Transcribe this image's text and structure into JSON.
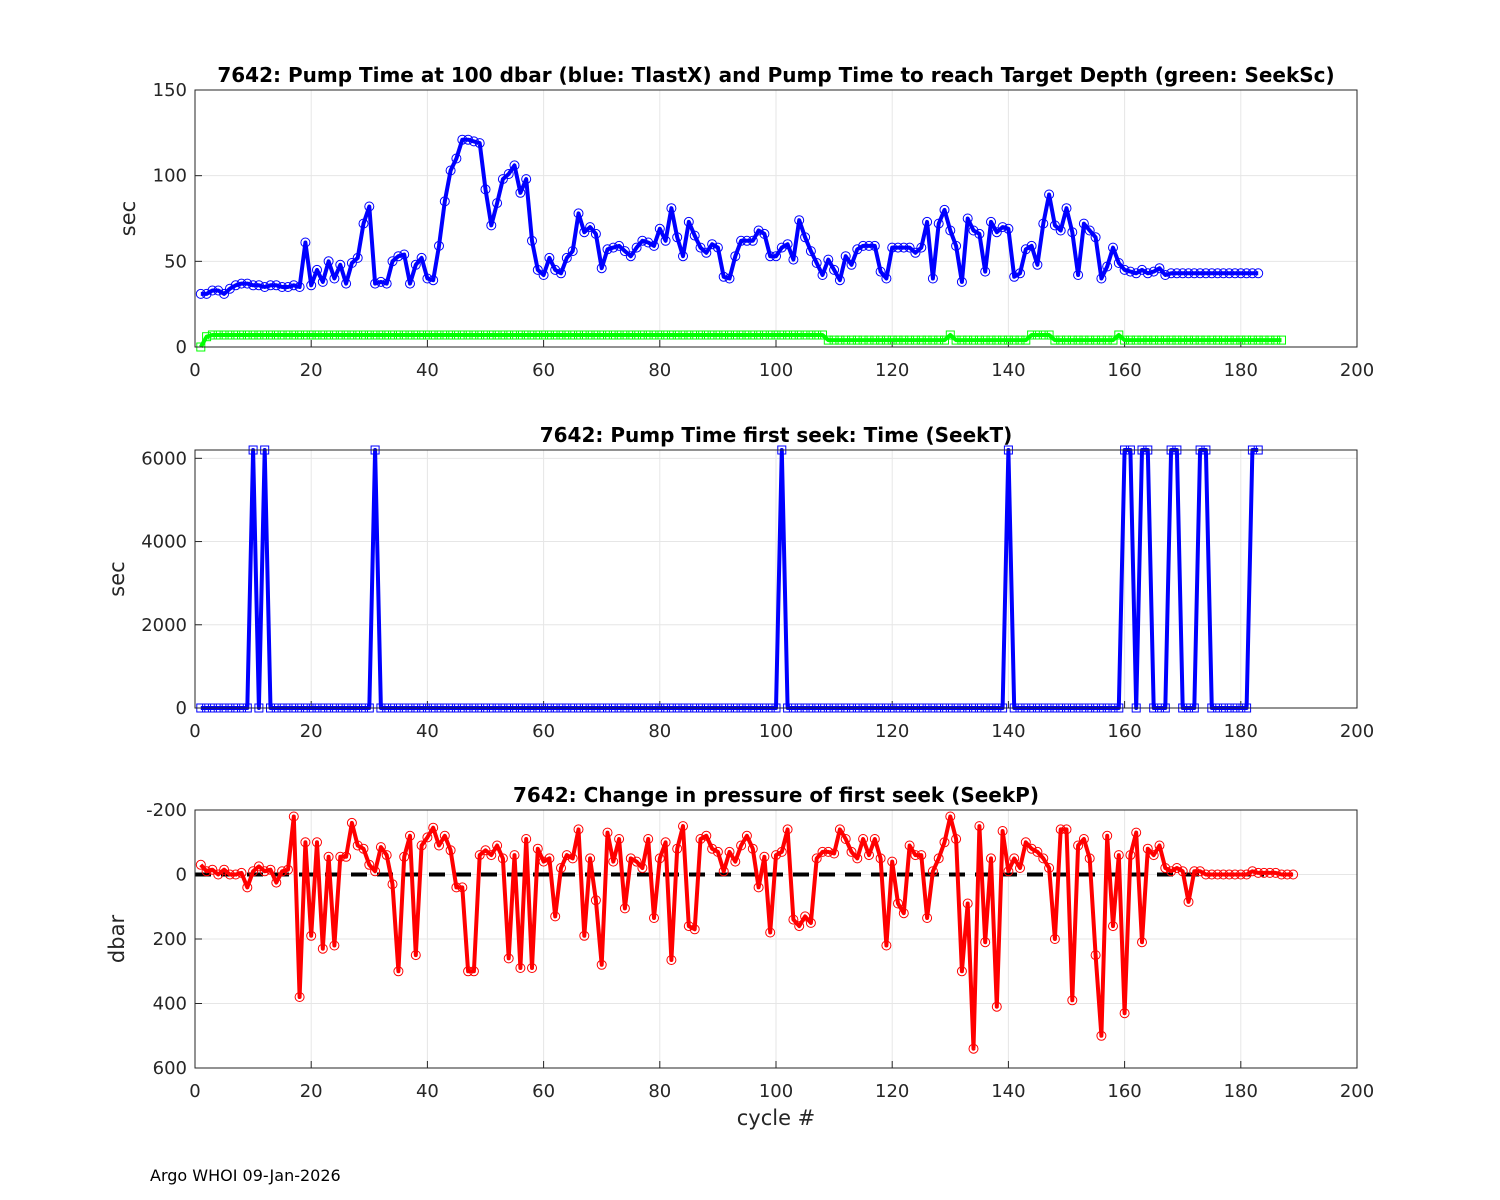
{
  "footer": "Argo WHOI 09-Jan-2026",
  "colors": {
    "blue": "#0000ff",
    "green": "#00ff00",
    "red": "#ff0000",
    "black": "#000000",
    "grid": "#e6e6e6",
    "axis": "#262626"
  },
  "chart_data": [
    {
      "type": "line",
      "title": "7642:  Pump Time at 100 dbar (blue: TlastX) and Pump Time to reach Target Depth (green: SeekSc)",
      "xlabel": "",
      "ylabel": "sec",
      "xlim": [
        0,
        200
      ],
      "ylim": [
        0,
        150
      ],
      "y_reversed": false,
      "grid": true,
      "xticks": [
        0,
        20,
        40,
        60,
        80,
        100,
        120,
        140,
        160,
        180,
        200
      ],
      "yticks": [
        0,
        50,
        100,
        150
      ],
      "series": [
        {
          "color": "blue",
          "marker": "circle",
          "x_start": 1,
          "values": [
            31,
            31,
            33,
            33,
            31,
            34,
            36,
            37,
            37,
            36,
            36,
            35,
            36,
            36,
            35,
            35,
            36,
            35,
            61,
            36,
            45,
            38,
            50,
            40,
            48,
            37,
            49,
            52,
            72,
            82,
            37,
            38,
            37,
            50,
            53,
            54,
            37,
            48,
            52,
            40,
            39,
            59,
            85,
            103,
            110,
            121,
            121,
            120,
            119,
            92,
            71,
            84,
            98,
            101,
            106,
            90,
            98,
            62,
            45,
            42,
            52,
            45,
            43,
            52,
            56,
            78,
            67,
            70,
            66,
            46,
            57,
            58,
            59,
            56,
            53,
            58,
            62,
            61,
            59,
            69,
            62,
            81,
            64,
            53,
            73,
            65,
            58,
            55,
            60,
            58,
            41,
            40,
            53,
            62,
            62,
            62,
            68,
            66,
            53,
            53,
            58,
            60,
            51,
            74,
            64,
            56,
            49,
            42,
            51,
            45,
            39,
            53,
            48,
            57,
            59,
            59,
            59,
            44,
            40,
            58,
            58,
            58,
            58,
            55,
            58,
            73,
            40,
            72,
            80,
            68,
            59,
            38,
            75,
            68,
            66,
            44,
            73,
            67,
            70,
            69,
            41,
            43,
            57,
            59,
            48,
            72,
            89,
            71,
            68,
            81,
            67,
            42,
            72,
            68,
            64,
            40,
            47,
            58,
            49,
            45,
            44,
            43,
            45,
            43,
            44,
            46,
            42,
            43,
            43,
            43,
            43,
            43,
            43,
            43,
            43,
            43,
            43,
            43,
            43,
            43,
            43,
            43,
            43
          ]
        },
        {
          "color": "green",
          "marker": "square",
          "x_start": 1,
          "values": [
            0,
            6,
            7,
            7,
            7,
            7,
            7,
            7,
            7,
            7,
            7,
            7,
            7,
            7,
            7,
            7,
            7,
            7,
            7,
            7,
            7,
            7,
            7,
            7,
            7,
            7,
            7,
            7,
            7,
            7,
            7,
            7,
            7,
            7,
            7,
            7,
            7,
            7,
            7,
            7,
            7,
            7,
            7,
            7,
            7,
            7,
            7,
            7,
            7,
            7,
            7,
            7,
            7,
            7,
            7,
            7,
            7,
            7,
            7,
            7,
            7,
            7,
            7,
            7,
            7,
            7,
            7,
            7,
            7,
            7,
            7,
            7,
            7,
            7,
            7,
            7,
            7,
            7,
            7,
            7,
            7,
            7,
            7,
            7,
            7,
            7,
            7,
            7,
            7,
            7,
            7,
            7,
            7,
            7,
            7,
            7,
            7,
            7,
            7,
            7,
            7,
            7,
            7,
            7,
            7,
            7,
            7,
            7,
            4,
            4,
            4,
            4,
            4,
            4,
            4,
            4,
            4,
            4,
            4,
            4,
            4,
            4,
            4,
            4,
            4,
            4,
            4,
            4,
            4,
            7,
            4,
            4,
            4,
            4,
            4,
            4,
            4,
            4,
            4,
            4,
            4,
            4,
            4,
            7,
            7,
            7,
            7,
            4,
            4,
            4,
            4,
            4,
            4,
            4,
            4,
            4,
            4,
            4,
            7,
            4,
            4,
            4,
            4,
            4,
            4,
            4,
            4,
            4,
            4,
            4,
            4,
            4,
            4,
            4,
            4,
            4,
            4,
            4,
            4,
            4,
            4,
            4,
            4,
            4,
            4,
            4,
            4
          ]
        }
      ]
    },
    {
      "type": "line",
      "title": "7642: Pump Time first seek: Time (SeekT)",
      "xlabel": "",
      "ylabel": "sec",
      "xlim": [
        0,
        200
      ],
      "ylim": [
        0,
        6200
      ],
      "y_reversed": false,
      "grid": true,
      "xticks": [
        0,
        20,
        40,
        60,
        80,
        100,
        120,
        140,
        160,
        180,
        200
      ],
      "yticks": [
        0,
        2000,
        4000,
        6000
      ],
      "series": [
        {
          "color": "blue",
          "marker": "square",
          "x_start": 1,
          "values": [
            0,
            0,
            0,
            0,
            0,
            0,
            0,
            0,
            0,
            6200,
            0,
            6200,
            0,
            0,
            0,
            0,
            0,
            0,
            0,
            0,
            0,
            0,
            0,
            0,
            0,
            0,
            0,
            0,
            0,
            0,
            6200,
            0,
            0,
            0,
            0,
            0,
            0,
            0,
            0,
            0,
            0,
            0,
            0,
            0,
            0,
            0,
            0,
            0,
            0,
            0,
            0,
            0,
            0,
            0,
            0,
            0,
            0,
            0,
            0,
            0,
            0,
            0,
            0,
            0,
            0,
            0,
            0,
            0,
            0,
            0,
            0,
            0,
            0,
            0,
            0,
            0,
            0,
            0,
            0,
            0,
            0,
            0,
            0,
            0,
            0,
            0,
            0,
            0,
            0,
            0,
            0,
            0,
            0,
            0,
            0,
            0,
            0,
            0,
            0,
            0,
            6200,
            0,
            0,
            0,
            0,
            0,
            0,
            0,
            0,
            0,
            0,
            0,
            0,
            0,
            0,
            0,
            0,
            0,
            0,
            0,
            0,
            0,
            0,
            0,
            0,
            0,
            0,
            0,
            0,
            0,
            0,
            0,
            0,
            0,
            0,
            0,
            0,
            0,
            0,
            6200,
            0,
            0,
            0,
            0,
            0,
            0,
            0,
            0,
            0,
            0,
            0,
            0,
            0,
            0,
            0,
            0,
            0,
            0,
            0,
            6200,
            6200,
            0,
            6200,
            6200,
            0,
            0,
            0,
            6200,
            6200,
            0,
            0,
            0,
            6200,
            6200,
            0,
            0,
            0,
            0,
            0,
            0,
            0,
            6200,
            6200
          ]
        }
      ]
    },
    {
      "type": "line",
      "title": "7642: Change in pressure of first seek (SeekP)",
      "xlabel": "cycle #",
      "ylabel": "dbar",
      "xlim": [
        0,
        200
      ],
      "ylim": [
        -200,
        600
      ],
      "y_reversed": true,
      "grid": true,
      "xticks": [
        0,
        20,
        40,
        60,
        80,
        100,
        120,
        140,
        160,
        180,
        200
      ],
      "yticks": [
        -200,
        0,
        200,
        400,
        600
      ],
      "reference_line": {
        "y": 0,
        "x_range": [
          0,
          184
        ],
        "color": "black",
        "style": "dashed"
      },
      "series": [
        {
          "color": "red",
          "marker": "circle",
          "x_start": 1,
          "values": [
            -30,
            -10,
            -15,
            0,
            -15,
            0,
            0,
            -5,
            40,
            -10,
            -25,
            -10,
            -15,
            25,
            -10,
            -15,
            -180,
            380,
            -100,
            190,
            -100,
            230,
            -55,
            220,
            -55,
            -55,
            -160,
            -90,
            -80,
            -30,
            -10,
            -85,
            -60,
            30,
            300,
            -55,
            -120,
            250,
            -90,
            -115,
            -145,
            -90,
            -120,
            -75,
            40,
            40,
            300,
            300,
            -60,
            -75,
            -60,
            -90,
            -50,
            260,
            -60,
            290,
            -110,
            290,
            -80,
            -40,
            -50,
            130,
            -20,
            -60,
            -50,
            -140,
            190,
            -50,
            80,
            280,
            -130,
            -40,
            -110,
            105,
            -50,
            -40,
            -20,
            -110,
            135,
            -50,
            -100,
            265,
            -80,
            -150,
            160,
            170,
            -110,
            -120,
            -80,
            -70,
            -10,
            -70,
            -40,
            -90,
            -120,
            -80,
            40,
            -55,
            180,
            -60,
            -70,
            -140,
            140,
            160,
            130,
            150,
            -50,
            -70,
            -70,
            -65,
            -140,
            -110,
            -70,
            -50,
            -110,
            -60,
            -110,
            -50,
            220,
            -40,
            90,
            120,
            -90,
            -60,
            -60,
            135,
            -10,
            -50,
            -100,
            -180,
            -110,
            300,
            90,
            540,
            -150,
            210,
            -50,
            410,
            -135,
            -10,
            -50,
            -20,
            -100,
            -80,
            -70,
            -50,
            -20,
            200,
            -140,
            -140,
            390,
            -90,
            -110,
            -50,
            250,
            500,
            -120,
            160,
            -60,
            430,
            -60,
            -130,
            210,
            -80,
            -60,
            -90,
            -20,
            -10,
            -20,
            -10,
            85,
            -10,
            -10,
            0,
            0,
            0,
            0,
            0,
            0,
            0,
            0,
            -10,
            -5,
            -5,
            -5,
            -5,
            0,
            0,
            0
          ]
        }
      ]
    }
  ]
}
